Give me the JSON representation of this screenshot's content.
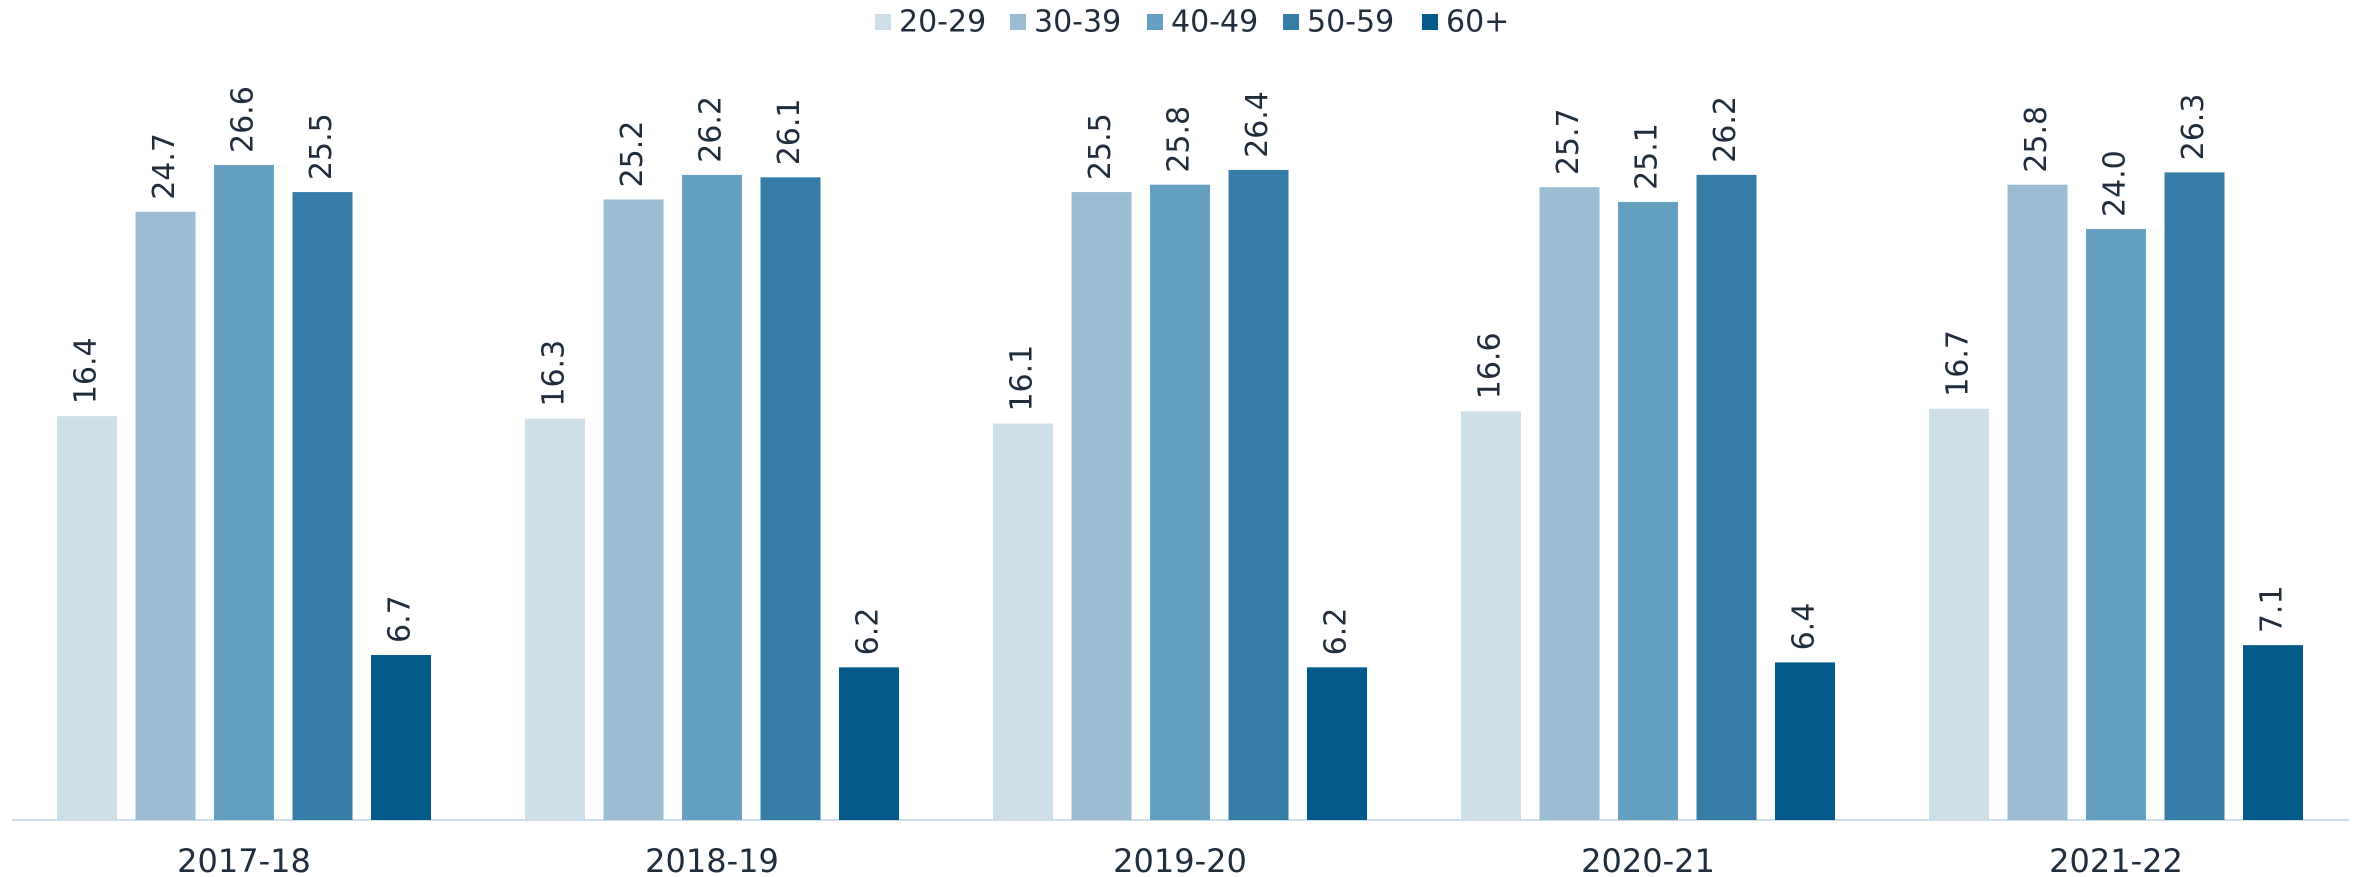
{
  "chart_data": {
    "type": "bar",
    "categories": [
      "2017-18",
      "2018-19",
      "2019-20",
      "2020-21",
      "2021-22"
    ],
    "series": [
      {
        "name": "20-29",
        "color": "#cfdfe9",
        "values": [
          16.4,
          16.3,
          16.1,
          16.6,
          16.7
        ]
      },
      {
        "name": "30-39",
        "color": "#9bbdd3",
        "values": [
          24.7,
          25.2,
          25.5,
          25.7,
          25.8
        ]
      },
      {
        "name": "40-49",
        "color": "#66a0c0",
        "values": [
          26.6,
          26.2,
          25.8,
          25.1,
          24.0
        ]
      },
      {
        "name": "50-59",
        "color": "#357ca6",
        "values": [
          25.5,
          26.1,
          26.4,
          26.2,
          26.3
        ]
      },
      {
        "name": "60+",
        "color": "#055a8c",
        "values": [
          6.7,
          6.2,
          6.2,
          6.4,
          7.1
        ]
      }
    ],
    "value_labels": [
      [
        "16.4",
        "16.3",
        "16.1",
        "16.6",
        "16.7"
      ],
      [
        "24.7",
        "25.2",
        "25.5",
        "25.7",
        "25.8"
      ],
      [
        "26.6",
        "26.2",
        "25.8",
        "25.1",
        "24.0"
      ],
      [
        "25.5",
        "26.1",
        "26.4",
        "26.2",
        "26.3"
      ],
      [
        "6.7",
        "6.2",
        "6.2",
        "6.4",
        "7.1"
      ]
    ],
    "legend": "top"
  }
}
